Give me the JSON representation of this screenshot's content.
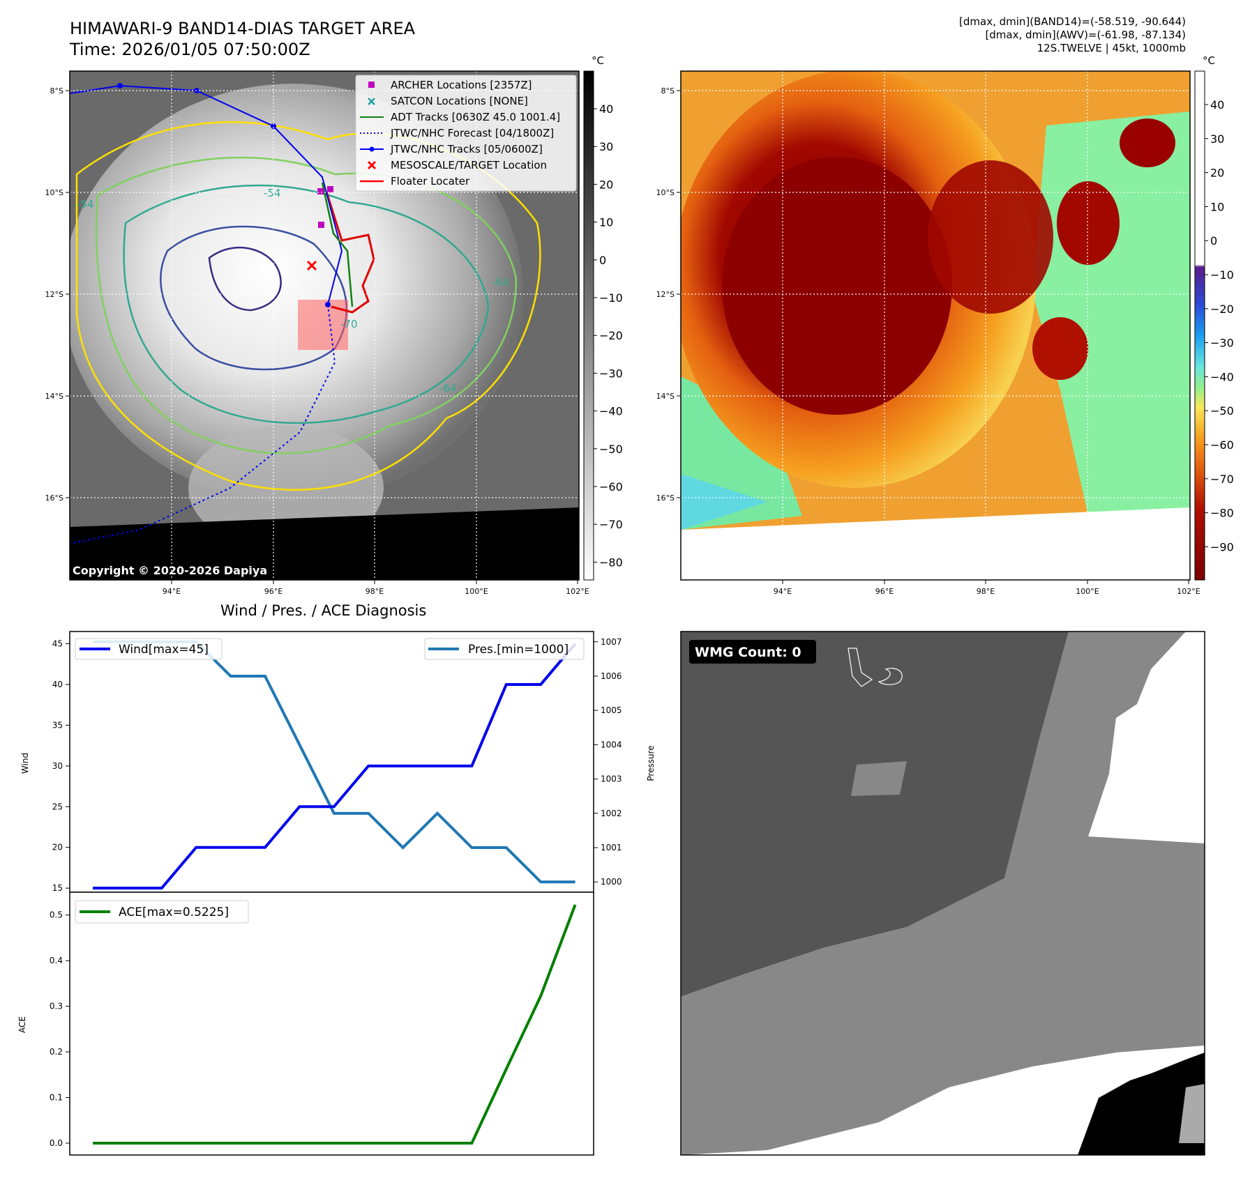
{
  "header": {
    "title_line1": "HIMAWARI-9 BAND14-DIAS TARGET AREA",
    "title_line2": "Time: 2026/01/05 07:50:00Z",
    "diag_line1": "[dmax, dmin](BAND14)=(-58.519, -90.644)",
    "diag_line2": "[dmax, dmin](AWV)=(-61.98, -87.134)",
    "diag_line3": "12S.TWELVE | 45kt, 1000mb"
  },
  "map": {
    "lon_ticks": [
      "94°E",
      "96°E",
      "98°E",
      "100°E",
      "102°E"
    ],
    "lat_ticks": [
      "8°S",
      "10°S",
      "12°S",
      "14°S",
      "16°S"
    ],
    "copyright": "Copyright © 2020-2026 Dapiya",
    "contour_labels": [
      "-54",
      "-64",
      "-70",
      "-64",
      "-54"
    ],
    "legend": [
      {
        "label": "ARCHER Locations [2357Z]",
        "color": "#c000c0"
      },
      {
        "label": "SATCON Locations [NONE]",
        "color": "#20a0a0"
      },
      {
        "label": "ADT Tracks [0630Z 45.0 1001.4]",
        "color": "#108010"
      },
      {
        "label": "JTWC/NHC Forecast [04/1800Z]",
        "color": "#0000ff"
      },
      {
        "label": "JTWC/NHC Tracks [05/0600Z]",
        "color": "#0000ff"
      },
      {
        "label": "MESOSCALE/TARGET Location",
        "color": "#ff0000"
      },
      {
        "label": "Floater Locater",
        "color": "#ff0000"
      }
    ]
  },
  "colorbar_band14": {
    "unit": "°C",
    "ticks": [
      "40",
      "30",
      "20",
      "10",
      "0",
      "−10",
      "−20",
      "−30",
      "−40",
      "−50",
      "−60",
      "−70",
      "−80"
    ]
  },
  "colorbar_awv": {
    "unit": "°C",
    "ticks": [
      "40",
      "30",
      "20",
      "10",
      "0",
      "−10",
      "−20",
      "−30",
      "−40",
      "−50",
      "−60",
      "−70",
      "−80",
      "−90"
    ]
  },
  "wmg": {
    "label": "WMG Count: 0"
  },
  "chart_data": [
    {
      "type": "line",
      "title": "Wind / Pres. / ACE Diagnosis",
      "x": [
        0,
        1,
        2,
        3,
        4,
        5,
        6,
        7,
        8,
        9,
        10,
        11,
        12,
        13,
        14
      ],
      "series": [
        {
          "name": "Wind[max=45]",
          "axis": "left",
          "color": "#0000ee",
          "values": [
            15,
            15,
            15,
            20,
            20,
            20,
            25,
            25,
            30,
            30,
            30,
            30,
            40,
            40,
            45
          ]
        },
        {
          "name": "Pres.[min=1000]",
          "axis": "right",
          "color": "#1f77b4",
          "values": [
            1007,
            1007,
            1007,
            1007,
            1006,
            1006,
            1004,
            1002,
            1002,
            1001,
            1002,
            1001,
            1001,
            1000,
            1000
          ]
        }
      ],
      "ylabel": "Wind",
      "ylabel_right": "Pressure",
      "ylim": [
        14.5,
        46.5
      ],
      "ylim_right": [
        999.7,
        1007.3
      ],
      "yticks": [
        "15",
        "20",
        "25",
        "30",
        "35",
        "40",
        "45"
      ],
      "yticks_right": [
        "1000",
        "1001",
        "1002",
        "1003",
        "1004",
        "1005",
        "1006",
        "1007"
      ]
    },
    {
      "type": "line",
      "x": [
        0,
        1,
        2,
        3,
        4,
        5,
        6,
        7,
        8,
        9,
        10,
        11,
        12,
        13,
        14
      ],
      "series": [
        {
          "name": "ACE[max=0.5225]",
          "color": "#008000",
          "values": [
            0,
            0,
            0,
            0,
            0,
            0,
            0,
            0,
            0,
            0,
            0,
            0,
            0.1625,
            0.3225,
            0.5225
          ]
        }
      ],
      "ylabel": "ACE",
      "ylim": [
        -0.026,
        0.55
      ],
      "yticks": [
        "0.0",
        "0.1",
        "0.2",
        "0.3",
        "0.4",
        "0.5"
      ]
    }
  ]
}
